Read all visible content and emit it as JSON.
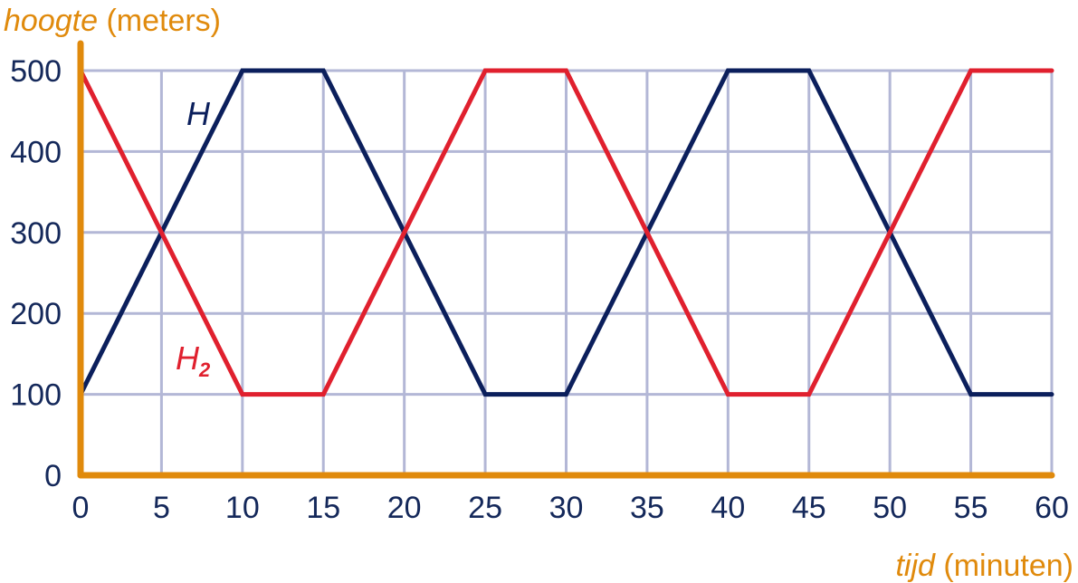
{
  "chart_data": {
    "type": "line",
    "xlabel": {
      "italic": "hoogte",
      "plain": "(meters)"
    },
    "ylabel_note": "",
    "y_axis_title": {
      "italic": "hoogte",
      "plain": " (meters)"
    },
    "x_axis_title": {
      "italic": "tijd",
      "plain": " (minuten)"
    },
    "xlim": [
      0,
      60
    ],
    "ylim": [
      0,
      500
    ],
    "x_ticks": [
      "0",
      "5",
      "10",
      "15",
      "20",
      "25",
      "30",
      "35",
      "40",
      "45",
      "50",
      "55",
      "60"
    ],
    "y_ticks": [
      "0",
      "100",
      "200",
      "300",
      "400",
      "500"
    ],
    "grid": true,
    "series": [
      {
        "name": "H",
        "color": "#0b1f5c",
        "x": [
          0,
          10,
          15,
          25,
          30,
          40,
          45,
          55,
          60
        ],
        "y": [
          100,
          500,
          500,
          100,
          100,
          500,
          500,
          100,
          100
        ]
      },
      {
        "name": "H",
        "subscript": "2",
        "color": "#e0202e",
        "x": [
          0,
          10,
          15,
          25,
          30,
          40,
          45,
          55,
          60
        ],
        "y": [
          500,
          100,
          100,
          500,
          500,
          100,
          100,
          500,
          500
        ]
      }
    ],
    "colors": {
      "axis": "#e08a0c",
      "grid": "#b3b7d6",
      "tick_text": "#14285a"
    }
  }
}
